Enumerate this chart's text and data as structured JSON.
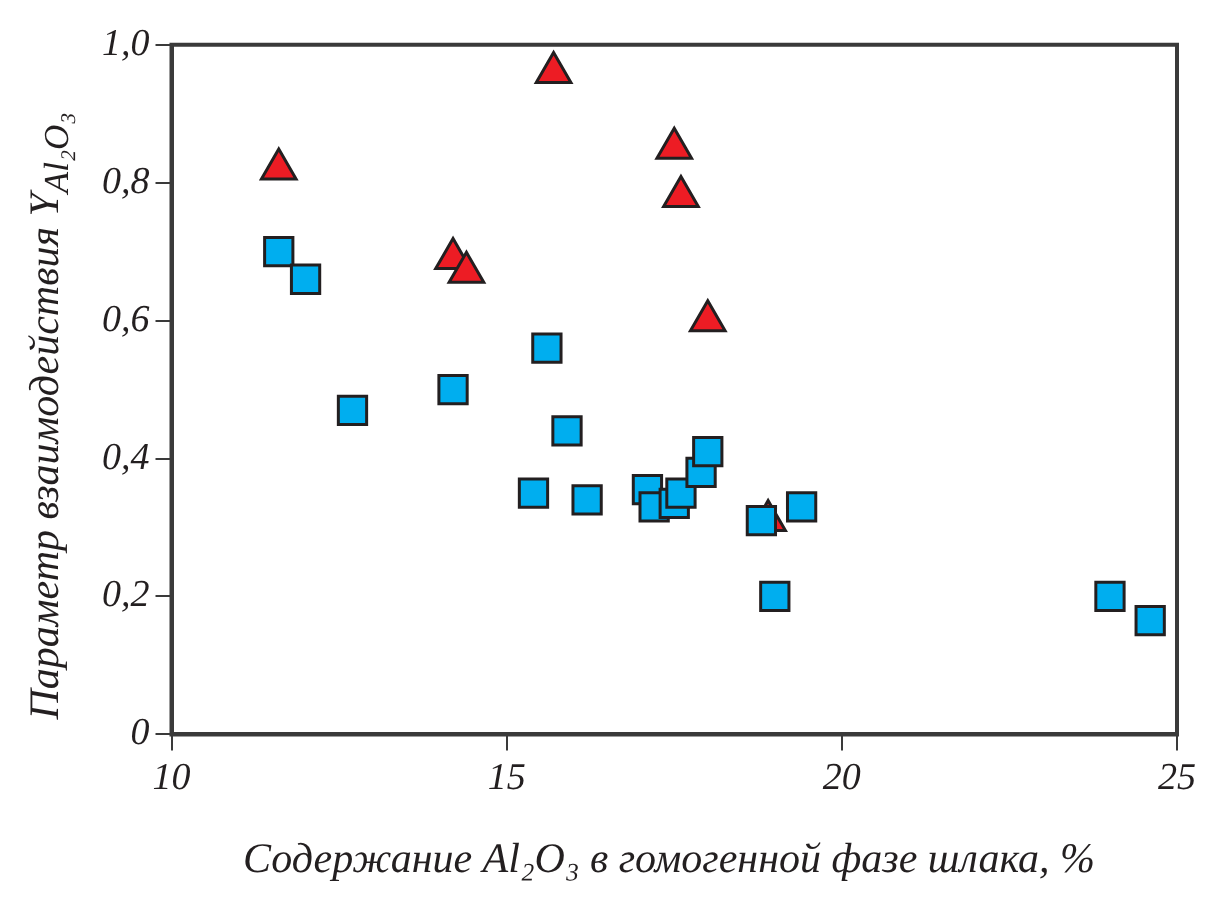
{
  "chart_data": {
    "type": "scatter",
    "xlabel": "Содержание Al₂O₃ в гомогенной фазе шлака, %",
    "ylabel": "Параметр взаимодействия Y$_{Al₂O₃}$",
    "xlim": [
      10,
      25
    ],
    "xticks": [
      10,
      15,
      20,
      25
    ],
    "ylim": [
      0,
      1
    ],
    "yticks": [
      0,
      {
        "value": 0.2,
        "label": "0,2"
      },
      {
        "value": 0.4,
        "label": "0,4"
      },
      {
        "value": 0.6,
        "label": "0,6"
      },
      {
        "value": 0.8,
        "label": "0,8"
      },
      {
        "value": 1,
        "label": "1,0"
      }
    ],
    "grid": false,
    "legend": false,
    "series": [
      {
        "color": "#ed1c24",
        "marker": "triangle",
        "x": [
          11.6,
          15.7,
          17.5,
          17.6,
          18.0,
          14.2,
          14.4,
          18.9
        ],
        "values": [
          0.82,
          0.96,
          0.85,
          0.78,
          0.6,
          0.69,
          0.67,
          0.31
        ]
      },
      {
        "color": "#00aeef",
        "marker": "square",
        "x": [
          11.6,
          12.0,
          12.7,
          14.2,
          15.6,
          15.9,
          15.4,
          16.2,
          17.1,
          17.2,
          17.5,
          17.6,
          17.9,
          18.0,
          18.8,
          19.4,
          19.0,
          24.0,
          24.6
        ],
        "values": [
          0.7,
          0.66,
          0.47,
          0.5,
          0.56,
          0.44,
          0.35,
          0.34,
          0.355,
          0.33,
          0.335,
          0.35,
          0.38,
          0.41,
          0.31,
          0.33,
          0.2,
          0.2,
          0.165
        ]
      }
    ]
  }
}
